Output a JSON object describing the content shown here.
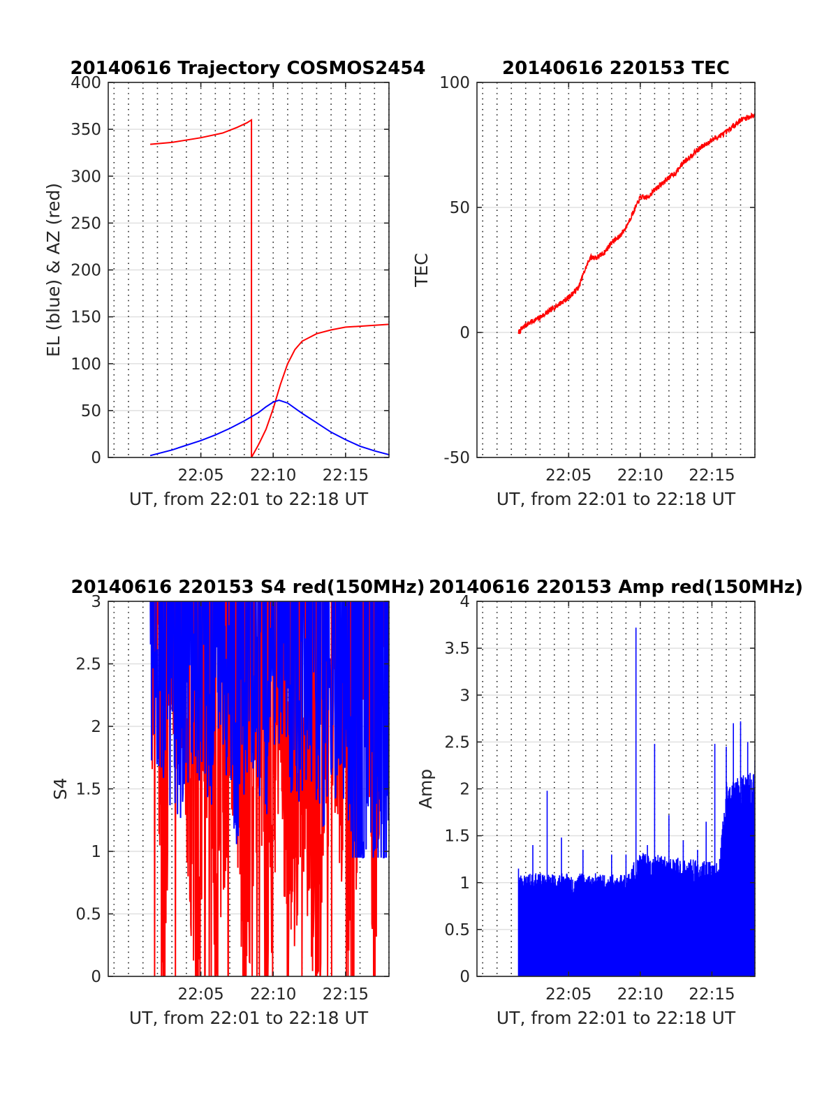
{
  "colors": {
    "red_series": "#ff0000",
    "blue_series": "#0000ff",
    "grid": "#e0e0e0",
    "axis": "#262626",
    "background": "#ffffff"
  },
  "chart_data": [
    {
      "id": "trajectory",
      "type": "line",
      "title": "20140616 Trajectory COSMOS2454",
      "xlabel": "UT, from 22:01 to 22:18 UT",
      "ylabel": "EL (blue) & AZ (red)",
      "xlim": [
        "21:58.6",
        "22:18.0"
      ],
      "ylim": [
        0,
        400
      ],
      "x_ticks": [
        "22:05",
        "22:10",
        "22:15"
      ],
      "y_ticks": [
        "0",
        "50",
        "100",
        "150",
        "200",
        "250",
        "300",
        "350",
        "400"
      ],
      "grid": true,
      "series": [
        {
          "color": "red",
          "points": [
            [
              "22:01.5",
              334
            ],
            [
              "22:03",
              336
            ],
            [
              "22:05",
              341
            ],
            [
              "22:06.5",
              346
            ],
            [
              "22:07.5",
              352
            ],
            [
              "22:08.2",
              357
            ],
            [
              "22:08.5",
              360
            ],
            [
              "22:08.5",
              0
            ],
            [
              "22:09",
              14
            ],
            [
              "22:09.5",
              30
            ],
            [
              "22:10",
              52
            ],
            [
              "22:10.5",
              78
            ],
            [
              "22:11",
              100
            ],
            [
              "22:11.5",
              115
            ],
            [
              "22:12",
              124
            ],
            [
              "22:13",
              132
            ],
            [
              "22:14",
              136
            ],
            [
              "22:15",
              139
            ],
            [
              "22:16",
              140
            ],
            [
              "22:17",
              141
            ],
            [
              "22:18",
              142
            ]
          ]
        },
        {
          "color": "blue",
          "points": [
            [
              "22:01.5",
              2
            ],
            [
              "22:03",
              8
            ],
            [
              "22:04",
              13
            ],
            [
              "22:05",
              18
            ],
            [
              "22:06",
              24
            ],
            [
              "22:07",
              31
            ],
            [
              "22:08",
              39
            ],
            [
              "22:09",
              48
            ],
            [
              "22:09.5",
              54
            ],
            [
              "22:10",
              59
            ],
            [
              "22:10.4",
              61
            ],
            [
              "22:11",
              58
            ],
            [
              "22:12",
              47
            ],
            [
              "22:13",
              37
            ],
            [
              "22:14",
              27
            ],
            [
              "22:15",
              19
            ],
            [
              "22:16",
              12
            ],
            [
              "22:17",
              7
            ],
            [
              "22:18",
              3
            ]
          ]
        }
      ]
    },
    {
      "id": "tec",
      "type": "line",
      "title": "20140616 220153 TEC",
      "xlabel": "UT, from 22:01 to 22:18 UT",
      "ylabel": "TEC",
      "xlim": [
        "21:58.6",
        "22:18.0"
      ],
      "ylim": [
        -50,
        100
      ],
      "x_ticks": [
        "22:05",
        "22:10",
        "22:15"
      ],
      "y_ticks": [
        "-50",
        "0",
        "50",
        "100"
      ],
      "grid": true,
      "series": [
        {
          "color": "red",
          "points": [
            [
              "22:01.5",
              0
            ],
            [
              "22:02",
              3
            ],
            [
              "22:03",
              6
            ],
            [
              "22:04",
              10
            ],
            [
              "22:05",
              14
            ],
            [
              "22:05.7",
              18
            ],
            [
              "22:06",
              23
            ],
            [
              "22:06.5",
              30
            ],
            [
              "22:07",
              30
            ],
            [
              "22:07.5",
              32
            ],
            [
              "22:08",
              36
            ],
            [
              "22:08.5",
              38
            ],
            [
              "22:09",
              42
            ],
            [
              "22:09.5",
              48
            ],
            [
              "22:10",
              54
            ],
            [
              "22:10.5",
              54
            ],
            [
              "22:11",
              57
            ],
            [
              "22:12",
              62
            ],
            [
              "22:12.5",
              64
            ],
            [
              "22:13",
              68
            ],
            [
              "22:14",
              73
            ],
            [
              "22:15",
              77
            ],
            [
              "22:16",
              80
            ],
            [
              "22:17",
              85
            ],
            [
              "22:18",
              87
            ]
          ]
        }
      ]
    },
    {
      "id": "s4",
      "type": "line",
      "title": "20140616 220153 S4 red(150MHz)",
      "xlabel": "UT, from 22:01 to 22:18 UT",
      "ylabel": "S4",
      "xlim": [
        "21:58.6",
        "22:18.0"
      ],
      "ylim": [
        0,
        3
      ],
      "x_ticks": [
        "22:05",
        "22:10",
        "22:15"
      ],
      "y_ticks": [
        "0",
        "0.5",
        "1",
        "1.5",
        "2",
        "2.5",
        "3"
      ],
      "grid": true,
      "series": [
        {
          "color": "red",
          "values_range": [
            0,
            3
          ],
          "points": [
            [
              "22:01.5",
              2.1
            ],
            [
              "22:02",
              2.5
            ],
            [
              "22:02.4",
              0
            ],
            [
              "22:03",
              2.4
            ],
            [
              "22:04",
              1.6
            ],
            [
              "22:04.8",
              0
            ],
            [
              "22:05.5",
              2.2
            ],
            [
              "22:06",
              0
            ],
            [
              "22:07",
              2.0
            ],
            [
              "22:08",
              0
            ],
            [
              "22:09",
              1.8
            ],
            [
              "22:09.5",
              0
            ],
            [
              "22:10.5",
              2.2
            ],
            [
              "22:11",
              0
            ],
            [
              "22:12",
              1.6
            ],
            [
              "22:13",
              0
            ],
            [
              "22:14",
              2.0
            ],
            [
              "22:15",
              1.2
            ],
            [
              "22:15.5",
              0
            ],
            [
              "22:16.5",
              2.9
            ],
            [
              "22:17",
              0
            ],
            [
              "22:17.5",
              2.9
            ],
            [
              "22:18",
              2.5
            ]
          ]
        },
        {
          "color": "blue",
          "values_range": [
            0.95,
            3
          ],
          "points": [
            [
              "22:01.5",
              2.4
            ],
            [
              "22:02.5",
              2.2
            ],
            [
              "22:03.5",
              1.8
            ],
            [
              "22:04.5",
              2.3
            ],
            [
              "22:05.5",
              1.9
            ],
            [
              "22:06.5",
              2.5
            ],
            [
              "22:07.5",
              1.7
            ],
            [
              "22:08.5",
              2.4
            ],
            [
              "22:09.5",
              1.9
            ],
            [
              "22:10.5",
              2.6
            ],
            [
              "22:11.5",
              2.0
            ],
            [
              "22:12.5",
              2.3
            ],
            [
              "22:13.5",
              1.8
            ],
            [
              "22:14.5",
              2.2
            ],
            [
              "22:15",
              1.6
            ],
            [
              "22:15.5",
              1.3
            ],
            [
              "22:16",
              1.2
            ],
            [
              "22:16.5",
              1.1
            ],
            [
              "22:17",
              1.4
            ],
            [
              "22:17.5",
              1.1
            ],
            [
              "22:18",
              1.5
            ]
          ]
        }
      ]
    },
    {
      "id": "amp",
      "type": "line",
      "title": "20140616 220153 Amp red(150MHz)",
      "xlabel": "UT, from 22:01 to 22:18 UT",
      "ylabel": "Amp",
      "xlim": [
        "21:58.6",
        "22:18.0"
      ],
      "ylim": [
        0,
        4
      ],
      "x_ticks": [
        "22:05",
        "22:10",
        "22:15"
      ],
      "y_ticks": [
        "0",
        "0.5",
        "1",
        "1.5",
        "2",
        "2.5",
        "3",
        "3.5",
        "4"
      ],
      "grid": true,
      "series": [
        {
          "color": "blue",
          "values_range": [
            0,
            3.72
          ],
          "peaks": [
            [
              "22:01.5",
              1.15
            ],
            [
              "22:02.5",
              1.4
            ],
            [
              "22:03.5",
              1.98
            ],
            [
              "22:04.5",
              1.48
            ],
            [
              "22:06",
              1.35
            ],
            [
              "22:08",
              1.3
            ],
            [
              "22:09",
              1.3
            ],
            [
              "22:09.7",
              3.72
            ],
            [
              "22:10.5",
              1.4
            ],
            [
              "22:11",
              2.48
            ],
            [
              "22:12",
              1.72
            ],
            [
              "22:13",
              1.45
            ],
            [
              "22:14",
              1.35
            ],
            [
              "22:14.6",
              1.65
            ],
            [
              "22:15.2",
              2.48
            ],
            [
              "22:16",
              2.45
            ],
            [
              "22:16.5",
              2.7
            ],
            [
              "22:17",
              2.72
            ],
            [
              "22:17.5",
              2.5
            ],
            [
              "22:18",
              2.3
            ]
          ],
          "baselines": [
            [
              "22:01.5",
              1.0
            ],
            [
              "22:09",
              1.0
            ],
            [
              "22:10",
              1.2
            ],
            [
              "22:15.5",
              1.1
            ],
            [
              "22:16",
              1.9
            ],
            [
              "22:18",
              2.0
            ]
          ]
        }
      ]
    }
  ]
}
